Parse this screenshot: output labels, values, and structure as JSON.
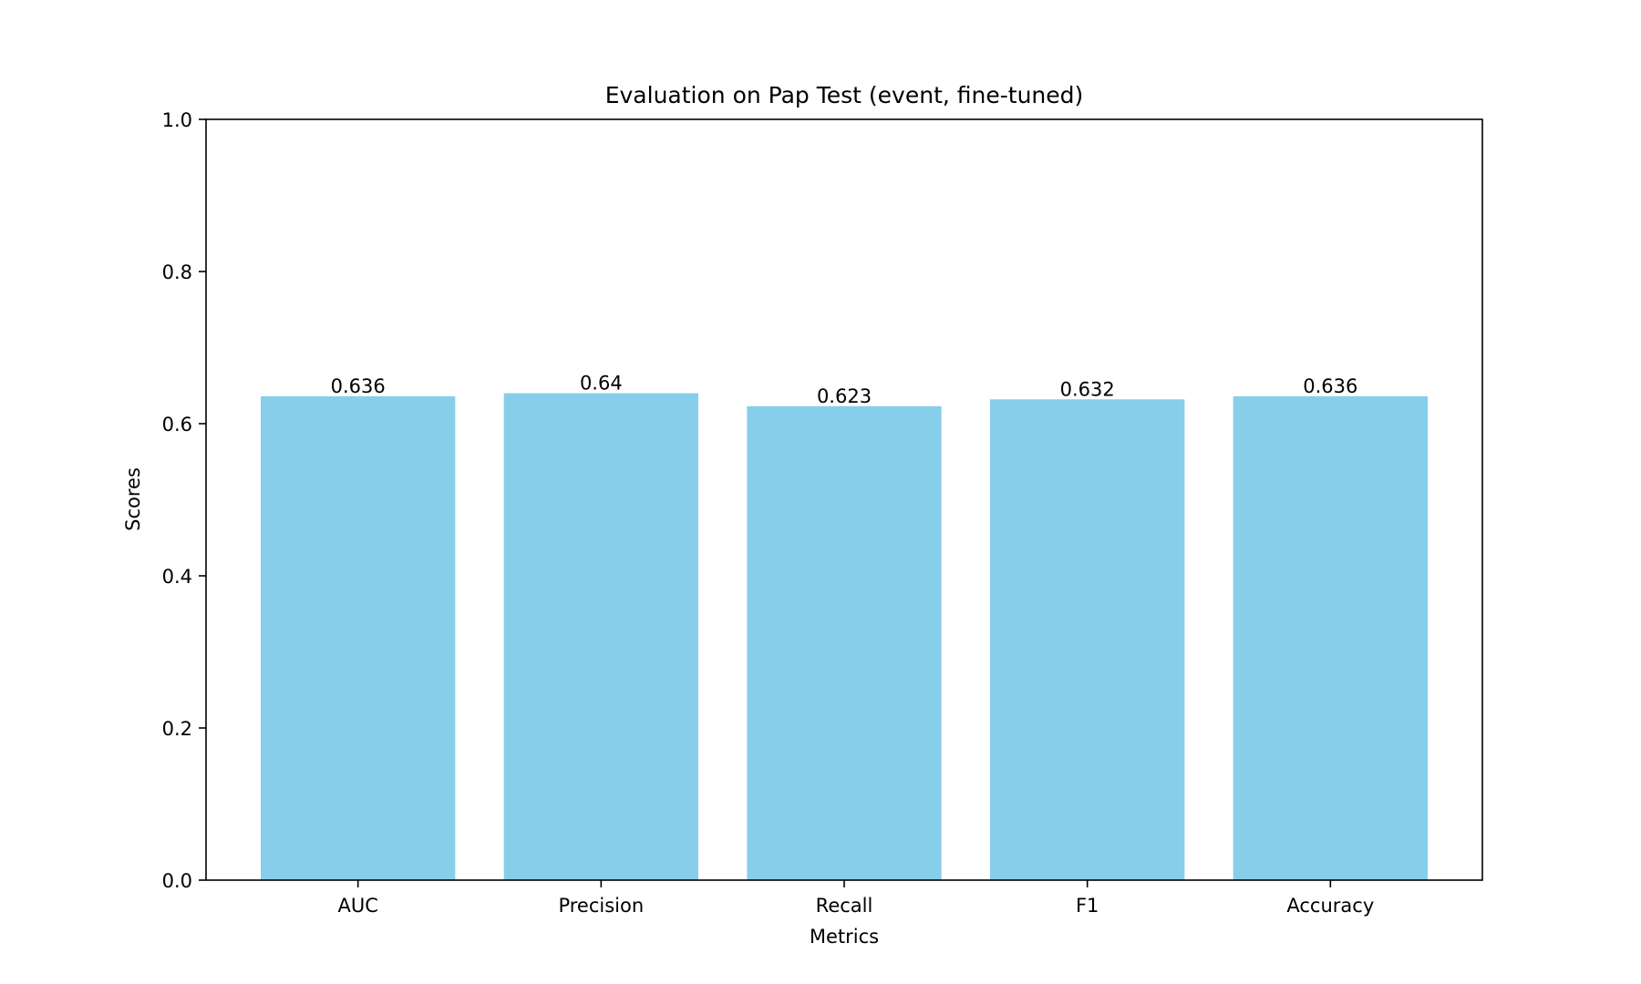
{
  "chart_data": {
    "type": "bar",
    "title": "Evaluation on Pap Test (event, fine-tuned)",
    "xlabel": "Metrics",
    "ylabel": "Scores",
    "categories": [
      "AUC",
      "Precision",
      "Recall",
      "F1",
      "Accuracy"
    ],
    "values": [
      0.636,
      0.64,
      0.623,
      0.632,
      0.636
    ],
    "value_labels": [
      "0.636",
      "0.64",
      "0.623",
      "0.632",
      "0.636"
    ],
    "ylim": [
      0,
      1.0
    ],
    "yticks": [
      "0.0",
      "0.2",
      "0.4",
      "0.6",
      "0.8",
      "1.0"
    ],
    "bar_color": "#87CEEB",
    "grid": false,
    "legend": "none"
  }
}
